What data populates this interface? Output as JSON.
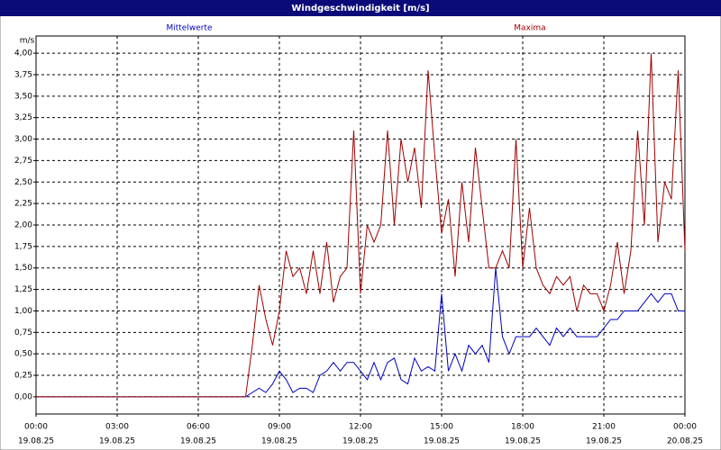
{
  "chart_data": {
    "type": "line",
    "title": "Windgeschwindigkeit [m/s]",
    "y_label": "m/s",
    "xlim": [
      0,
      24
    ],
    "ylim": [
      -0.2,
      4.2
    ],
    "grid": true,
    "xticks": [
      {
        "value": 0,
        "label": "00:00",
        "date": "19.08.25"
      },
      {
        "value": 3,
        "label": "03:00",
        "date": "19.08.25"
      },
      {
        "value": 6,
        "label": "06:00",
        "date": "19.08.25"
      },
      {
        "value": 9,
        "label": "09:00",
        "date": "19.08.25"
      },
      {
        "value": 12,
        "label": "12:00",
        "date": "19.08.25"
      },
      {
        "value": 15,
        "label": "15:00",
        "date": "19.08.25"
      },
      {
        "value": 18,
        "label": "18:00",
        "date": "19.08.25"
      },
      {
        "value": 21,
        "label": "21:00",
        "date": "19.08.25"
      },
      {
        "value": 24,
        "label": "00:00",
        "date": "20.08.25"
      }
    ],
    "yticks": [
      {
        "value": 0,
        "label": "0,00"
      },
      {
        "value": 0.25,
        "label": "0,25"
      },
      {
        "value": 0.5,
        "label": "0,50"
      },
      {
        "value": 0.75,
        "label": "0,75"
      },
      {
        "value": 1,
        "label": "1,00"
      },
      {
        "value": 1.25,
        "label": "1,25"
      },
      {
        "value": 1.5,
        "label": "1,50"
      },
      {
        "value": 1.75,
        "label": "1,75"
      },
      {
        "value": 2,
        "label": "2,00"
      },
      {
        "value": 2.25,
        "label": "2,25"
      },
      {
        "value": 2.5,
        "label": "2,50"
      },
      {
        "value": 2.75,
        "label": "2,75"
      },
      {
        "value": 3,
        "label": "3,00"
      },
      {
        "value": 3.25,
        "label": "3,25"
      },
      {
        "value": 3.5,
        "label": "3,50"
      },
      {
        "value": 3.75,
        "label": "3,75"
      },
      {
        "value": 4,
        "label": "4,00"
      }
    ],
    "x": [
      0,
      7.75,
      8,
      8.25,
      8.5,
      8.75,
      9,
      9.25,
      9.5,
      9.75,
      10,
      10.25,
      10.5,
      10.75,
      11,
      11.25,
      11.5,
      11.75,
      12,
      12.25,
      12.5,
      12.75,
      13,
      13.25,
      13.5,
      13.75,
      14,
      14.25,
      14.5,
      14.75,
      15,
      15.25,
      15.5,
      15.75,
      16,
      16.25,
      16.5,
      16.75,
      17,
      17.25,
      17.5,
      17.75,
      18,
      18.25,
      18.5,
      18.75,
      19,
      19.25,
      19.5,
      19.75,
      20,
      20.25,
      20.5,
      20.75,
      21,
      21.25,
      21.5,
      21.75,
      22,
      22.25,
      22.5,
      22.75,
      23,
      23.25,
      23.5,
      23.75,
      24
    ],
    "series": [
      {
        "name": "Mittelwerte",
        "color": "#0000c0",
        "values": [
          0,
          0,
          0.05,
          0.1,
          0.05,
          0.15,
          0.3,
          0.2,
          0.05,
          0.1,
          0.1,
          0.05,
          0.25,
          0.3,
          0.4,
          0.3,
          0.4,
          0.4,
          0.3,
          0.2,
          0.4,
          0.2,
          0.4,
          0.45,
          0.2,
          0.15,
          0.45,
          0.3,
          0.35,
          0.3,
          1.2,
          0.3,
          0.5,
          0.3,
          0.6,
          0.5,
          0.6,
          0.4,
          1.5,
          0.7,
          0.5,
          0.7,
          0.7,
          0.7,
          0.8,
          0.7,
          0.6,
          0.8,
          0.7,
          0.8,
          0.7,
          0.7,
          0.7,
          0.7,
          0.8,
          0.9,
          0.9,
          1.0,
          1.0,
          1.0,
          1.1,
          1.2,
          1.1,
          1.2,
          1.2,
          1.0,
          1.0
        ]
      },
      {
        "name": "Maxima",
        "color": "#a00000",
        "values": [
          0,
          0,
          0.6,
          1.3,
          0.9,
          0.6,
          1.0,
          1.7,
          1.4,
          1.5,
          1.2,
          1.7,
          1.2,
          1.8,
          1.1,
          1.4,
          1.5,
          3.1,
          1.2,
          2.0,
          1.8,
          2.0,
          3.1,
          2.0,
          3.0,
          2.5,
          2.9,
          2.2,
          3.8,
          2.8,
          1.9,
          2.3,
          1.4,
          2.5,
          1.8,
          2.9,
          2.2,
          1.5,
          1.5,
          1.7,
          1.5,
          3.0,
          1.5,
          2.2,
          1.5,
          1.3,
          1.2,
          1.4,
          1.3,
          1.4,
          1.0,
          1.3,
          1.2,
          1.2,
          1.0,
          1.3,
          1.8,
          1.2,
          1.7,
          3.1,
          2.0,
          4.0,
          1.8,
          2.5,
          2.3,
          3.8,
          1.7
        ]
      }
    ]
  }
}
